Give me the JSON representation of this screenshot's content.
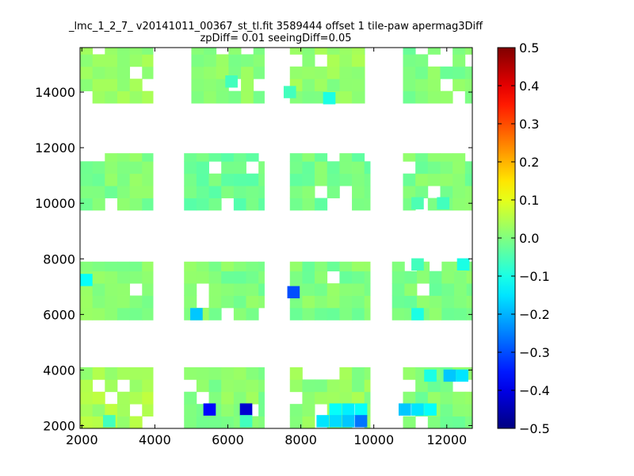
{
  "chart_data": {
    "type": "heatmap",
    "title": "_lmc_1_2_7_ v20141011_00367_st_tl.fit 3589444 offset 1 tile-paw apermag3Diff",
    "subtitle": "zpDiff= 0.01 seeingDiff=0.05",
    "xlabel": "",
    "ylabel": "",
    "xlim": [
      1950,
      12700
    ],
    "ylim": [
      1900,
      15600
    ],
    "x_ticks": [
      "2000",
      "4000",
      "6000",
      "8000",
      "10000",
      "12000"
    ],
    "y_ticks": [
      "2000",
      "4000",
      "6000",
      "8000",
      "10000",
      "12000",
      "14000"
    ],
    "colorbar": {
      "colormap": "jet",
      "range": [
        -0.5,
        0.5
      ],
      "ticks": [
        "0.5",
        "0.4",
        "0.3",
        "0.2",
        "0.1",
        "0.0",
        "−0.1",
        "−0.2",
        "−0.3",
        "−0.4",
        "−0.5"
      ]
    },
    "cell_size": [
      340,
      440
    ],
    "grid": false,
    "regions": [
      {
        "x": [
          1950,
          3950
        ],
        "y": [
          13600,
          15600
        ],
        "value": 0.02
      },
      {
        "x": [
          5000,
          7000
        ],
        "y": [
          13600,
          15600
        ],
        "value": 0.01
      },
      {
        "x": [
          7700,
          9750
        ],
        "y": [
          13600,
          15600
        ],
        "value": 0.02
      },
      {
        "x": [
          10800,
          12700
        ],
        "y": [
          13600,
          15600
        ],
        "value": 0.0
      },
      {
        "x": [
          1950,
          3950
        ],
        "y": [
          9750,
          11800
        ],
        "value": 0.0
      },
      {
        "x": [
          4800,
          7000
        ],
        "y": [
          9750,
          11800
        ],
        "value": -0.02
      },
      {
        "x": [
          7700,
          9900
        ],
        "y": [
          9750,
          11800
        ],
        "value": -0.01
      },
      {
        "x": [
          10800,
          12700
        ],
        "y": [
          9750,
          11800
        ],
        "value": 0.0
      },
      {
        "x": [
          1950,
          3950
        ],
        "y": [
          5800,
          7900
        ],
        "value": 0.01
      },
      {
        "x": [
          4800,
          7000
        ],
        "y": [
          5800,
          7900
        ],
        "value": 0.0
      },
      {
        "x": [
          7700,
          9900
        ],
        "y": [
          5800,
          7900
        ],
        "value": 0.0
      },
      {
        "x": [
          10500,
          12700
        ],
        "y": [
          5800,
          7900
        ],
        "value": 0.0
      },
      {
        "x": [
          1950,
          3950
        ],
        "y": [
          1900,
          4100
        ],
        "value": 0.04
      },
      {
        "x": [
          4800,
          7000
        ],
        "y": [
          1900,
          4100
        ],
        "value": 0.01
      },
      {
        "x": [
          7700,
          9900
        ],
        "y": [
          1900,
          4100
        ],
        "value": 0.02
      },
      {
        "x": [
          10800,
          12700
        ],
        "y": [
          1900,
          4100
        ],
        "value": 0.0
      }
    ],
    "highlights": [
      {
        "x": 6100,
        "y": 14380,
        "value": -0.06
      },
      {
        "x": 7700,
        "y": 14000,
        "value": -0.06
      },
      {
        "x": 8780,
        "y": 13780,
        "value": -0.1
      },
      {
        "x": 2120,
        "y": 7240,
        "value": -0.12
      },
      {
        "x": 7800,
        "y": 6800,
        "value": -0.3
      },
      {
        "x": 5140,
        "y": 6010,
        "value": -0.18
      },
      {
        "x": 11200,
        "y": 7800,
        "value": -0.06
      },
      {
        "x": 11200,
        "y": 6010,
        "value": -0.1
      },
      {
        "x": 12450,
        "y": 7800,
        "value": -0.1
      },
      {
        "x": 11200,
        "y": 10000,
        "value": -0.05
      },
      {
        "x": 11900,
        "y": 10000,
        "value": -0.06
      },
      {
        "x": 11550,
        "y": 3800,
        "value": -0.1
      },
      {
        "x": 12080,
        "y": 3800,
        "value": -0.18
      },
      {
        "x": 12420,
        "y": 3800,
        "value": -0.15
      },
      {
        "x": 11200,
        "y": 2580,
        "value": -0.15
      },
      {
        "x": 11550,
        "y": 2580,
        "value": -0.12
      },
      {
        "x": 10850,
        "y": 2580,
        "value": -0.18
      },
      {
        "x": 5500,
        "y": 2580,
        "value": -0.37
      },
      {
        "x": 6500,
        "y": 2580,
        "value": -0.42
      },
      {
        "x": 2750,
        "y": 2160,
        "value": -0.06
      },
      {
        "x": 8600,
        "y": 2160,
        "value": -0.15
      },
      {
        "x": 8950,
        "y": 2580,
        "value": -0.12
      },
      {
        "x": 8950,
        "y": 2160,
        "value": -0.16
      },
      {
        "x": 9300,
        "y": 2580,
        "value": -0.14
      },
      {
        "x": 9300,
        "y": 2160,
        "value": -0.18
      },
      {
        "x": 9650,
        "y": 2580,
        "value": -0.12
      },
      {
        "x": 9650,
        "y": 2160,
        "value": -0.26
      },
      {
        "x": 6500,
        "y": 2160,
        "value": -0.06
      }
    ]
  }
}
